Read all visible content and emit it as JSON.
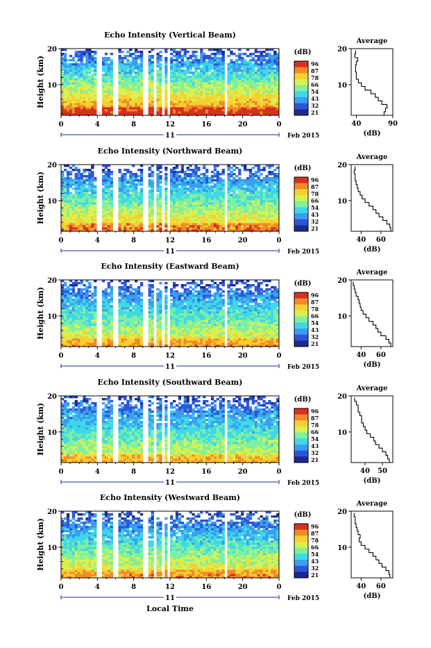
{
  "colorbar": {
    "unit": "(dB)",
    "ticks": [
      "96",
      "87",
      "78",
      "66",
      "54",
      "43",
      "32",
      "21"
    ]
  },
  "colors": {
    "scale": [
      "#1b2a8e",
      "#2e55d6",
      "#3a9ef0",
      "#3fd8e8",
      "#7ef0a0",
      "#d8f050",
      "#f8d030",
      "#f08a2a",
      "#d8301e"
    ]
  },
  "xaxis": {
    "ticks": [
      "0",
      "4",
      "8",
      "12",
      "16",
      "20",
      "0"
    ],
    "day": "11",
    "month": "Feb 2015",
    "label": "Local Time"
  },
  "chart_data": [
    {
      "type": "heatmap",
      "title": "Echo Intensity (Vertical Beam)",
      "ylabel": "Height (km)",
      "yticks": [
        "20",
        "10"
      ],
      "x_range_hours": [
        0,
        24
      ],
      "y_range_km": [
        1.5,
        20
      ],
      "z_range_db": [
        21,
        96
      ],
      "profile": {
        "title": "Average",
        "yticks": [
          "20",
          "10"
        ],
        "xticks": [
          "40",
          "90"
        ],
        "xlabel": "(dB)",
        "xlim": [
          33,
          90
        ],
        "height_km": [
          2,
          3,
          4,
          5,
          6,
          7,
          8,
          9,
          10,
          11,
          12,
          13,
          14,
          15,
          16,
          17,
          18,
          19
        ],
        "values_db": [
          78,
          80,
          82,
          75,
          70,
          66,
          60,
          52,
          47,
          43,
          40,
          40,
          39,
          39,
          40,
          42,
          38,
          39
        ]
      }
    },
    {
      "type": "heatmap",
      "title": "Echo Intensity (Northward Beam)",
      "ylabel": "Height (km)",
      "yticks": [
        "20",
        "10"
      ],
      "x_range_hours": [
        0,
        24
      ],
      "y_range_km": [
        1.5,
        20
      ],
      "z_range_db": [
        21,
        96
      ],
      "profile": {
        "title": "Average",
        "yticks": [
          "20",
          "10"
        ],
        "xticks": [
          "40",
          "60"
        ],
        "xlabel": "(dB)",
        "xlim": [
          30,
          72
        ],
        "height_km": [
          2,
          3,
          4,
          5,
          6,
          7,
          8,
          9,
          10,
          11,
          12,
          13,
          14,
          15,
          16,
          17,
          18,
          19
        ],
        "values_db": [
          70,
          69,
          66,
          62,
          58,
          55,
          52,
          48,
          44,
          41,
          39,
          37,
          36,
          35,
          34,
          34,
          33,
          34
        ]
      }
    },
    {
      "type": "heatmap",
      "title": "Echo Intensity (Eastward Beam)",
      "ylabel": "Height (km)",
      "yticks": [
        "20",
        "10"
      ],
      "x_range_hours": [
        0,
        24
      ],
      "y_range_km": [
        1.5,
        20
      ],
      "z_range_db": [
        21,
        96
      ],
      "profile": {
        "title": "Average",
        "yticks": [
          "20",
          "10"
        ],
        "xticks": [
          "40",
          "60"
        ],
        "xlabel": "(dB)",
        "xlim": [
          30,
          72
        ],
        "height_km": [
          2,
          3,
          4,
          5,
          6,
          7,
          8,
          9,
          10,
          11,
          12,
          13,
          14,
          15,
          16,
          17,
          18,
          19
        ],
        "values_db": [
          70,
          68,
          65,
          60,
          57,
          55,
          52,
          48,
          45,
          42,
          40,
          39,
          38,
          37,
          35,
          34,
          33,
          32
        ]
      }
    },
    {
      "type": "heatmap",
      "title": "Echo Intensity (Southward Beam)",
      "ylabel": "Height (km)",
      "yticks": [
        "20",
        "10"
      ],
      "x_range_hours": [
        0,
        24
      ],
      "y_range_km": [
        1.5,
        20
      ],
      "z_range_db": [
        21,
        96
      ],
      "profile": {
        "title": "Average",
        "yticks": [
          "20",
          "10"
        ],
        "xticks": [
          "40",
          "50"
        ],
        "xlabel": "(dB)",
        "xlim": [
          32,
          56
        ],
        "height_km": [
          2,
          3,
          4,
          5,
          6,
          7,
          8,
          9,
          10,
          11,
          12,
          13,
          14,
          15,
          16,
          17,
          18,
          19
        ],
        "values_db": [
          54,
          53,
          52,
          50,
          48,
          46,
          45,
          43,
          41,
          40,
          39,
          38,
          38,
          37,
          36,
          36,
          35,
          34
        ]
      }
    },
    {
      "type": "heatmap",
      "title": "Echo Intensity (Westward Beam)",
      "ylabel": "Height (km)",
      "yticks": [
        "20",
        "10"
      ],
      "x_range_hours": [
        0,
        24
      ],
      "y_range_km": [
        1.5,
        20
      ],
      "z_range_db": [
        21,
        96
      ],
      "profile": {
        "title": "Average",
        "yticks": [
          "20",
          "10"
        ],
        "xticks": [
          "40",
          "60"
        ],
        "xlabel": "(dB)",
        "xlim": [
          30,
          72
        ],
        "height_km": [
          2,
          3,
          4,
          5,
          6,
          7,
          8,
          9,
          10,
          11,
          12,
          13,
          14,
          15,
          16,
          17,
          18,
          19
        ],
        "values_db": [
          69,
          68,
          65,
          61,
          58,
          55,
          52,
          48,
          44,
          40,
          38,
          39,
          37,
          36,
          35,
          34,
          34,
          33
        ]
      }
    }
  ]
}
